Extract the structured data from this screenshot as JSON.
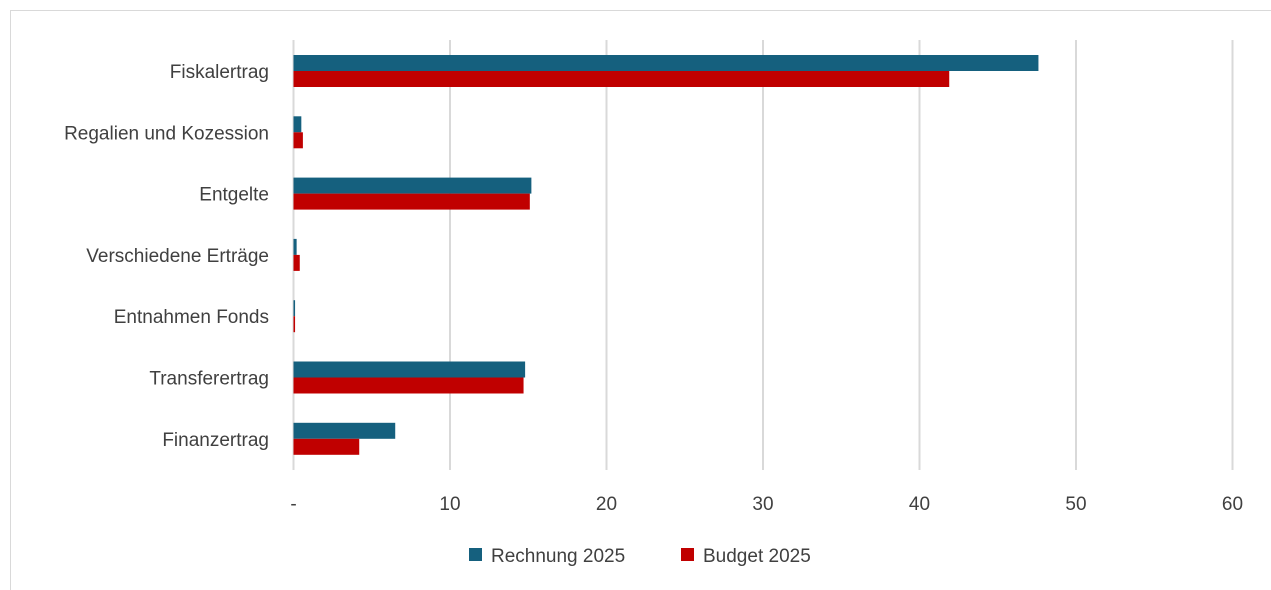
{
  "chart_data": {
    "type": "bar",
    "orientation": "horizontal",
    "title": "",
    "xlabel": "",
    "ylabel": "",
    "categories": [
      "Fiskalertrag",
      "Regalien und Kozession",
      "Entgelte",
      "Verschiedene Erträge",
      "Entnahmen Fonds",
      "Transferertrag",
      "Finanzertrag"
    ],
    "series": [
      {
        "name": "Rechnung 2025",
        "color": "#15607e",
        "values": [
          47.6,
          0.5,
          15.2,
          0.2,
          0.1,
          14.8,
          6.5
        ]
      },
      {
        "name": "Budget 2025",
        "color": "#c00000",
        "values": [
          41.9,
          0.6,
          15.1,
          0.4,
          0.1,
          14.7,
          4.2
        ]
      }
    ],
    "xlim": [
      0,
      60
    ],
    "xticks": [
      0,
      10,
      20,
      30,
      40,
      50,
      60
    ],
    "xtick_labels": [
      "-",
      "10",
      "20",
      "30",
      "40",
      "50",
      "60"
    ],
    "gridlines": "vertical",
    "legend_position": "bottom"
  }
}
